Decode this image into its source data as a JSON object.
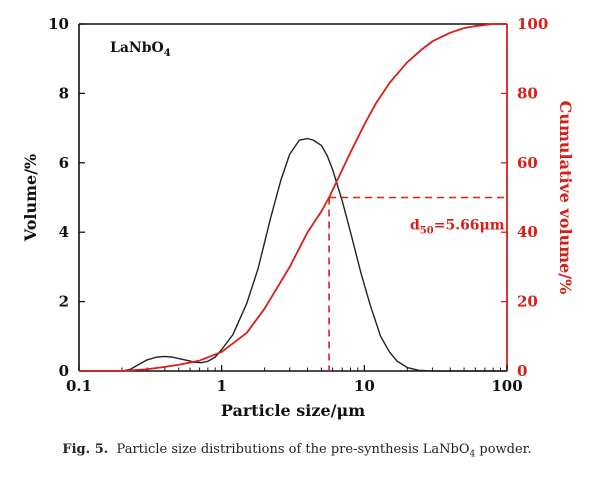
{
  "chart_data": {
    "type": "line",
    "xscale": "log",
    "xlim": [
      0.1,
      100
    ],
    "x_ticks": [
      "0.1",
      "1",
      "10",
      "100"
    ],
    "xlabel": "Particle size/μm",
    "left_axis": {
      "label": "Volume/%",
      "ylim": [
        0,
        10
      ],
      "ticks": [
        "0",
        "2",
        "4",
        "6",
        "8",
        "10"
      ],
      "color": "#111111"
    },
    "right_axis": {
      "label": "Cumulative volume/%",
      "ylim": [
        0,
        100
      ],
      "ticks": [
        "0",
        "20",
        "40",
        "60",
        "80",
        "100"
      ],
      "color": "#d91e18"
    },
    "series": [
      {
        "axis": "left",
        "color": "#222222",
        "x": [
          0.2,
          0.23,
          0.26,
          0.3,
          0.35,
          0.4,
          0.45,
          0.5,
          0.58,
          0.65,
          0.72,
          0.8,
          0.9,
          1.0,
          1.2,
          1.5,
          1.8,
          2.2,
          2.6,
          3.0,
          3.5,
          4.0,
          4.4,
          5.0,
          5.5,
          6.0,
          7.0,
          8.0,
          9.5,
          11.0,
          13.0,
          15.0,
          17.0,
          20.0,
          24.0,
          30.0,
          40.0,
          100.0
        ],
        "y": [
          0.0,
          0.05,
          0.18,
          0.32,
          0.4,
          0.42,
          0.4,
          0.36,
          0.3,
          0.25,
          0.24,
          0.28,
          0.4,
          0.62,
          1.05,
          1.95,
          2.95,
          4.4,
          5.5,
          6.25,
          6.65,
          6.7,
          6.65,
          6.5,
          6.2,
          5.8,
          4.9,
          4.0,
          2.8,
          1.9,
          1.0,
          0.55,
          0.28,
          0.1,
          0.02,
          0.0,
          0.0,
          0.0
        ]
      },
      {
        "axis": "right",
        "color": "#d91e18",
        "x": [
          0.1,
          0.2,
          0.3,
          0.4,
          0.5,
          0.7,
          1.0,
          1.5,
          2.0,
          3.0,
          4.0,
          5.0,
          5.66,
          7.0,
          8.0,
          10.0,
          12.0,
          15.0,
          20.0,
          25.0,
          30.0,
          40.0,
          50.0,
          60.0,
          80.0,
          100.0
        ],
        "y": [
          0.0,
          0.0,
          0.5,
          1.2,
          1.8,
          3.0,
          5.5,
          11.0,
          18.0,
          30.0,
          40.0,
          46.0,
          50.0,
          58.0,
          63.0,
          71.0,
          77.0,
          83.0,
          89.0,
          92.5,
          95.0,
          97.5,
          98.8,
          99.4,
          100.0,
          100.0
        ]
      }
    ],
    "annotations": [
      {
        "type": "marker",
        "text_main": "d",
        "text_sub": "50",
        "text_rest": "=5.66μm",
        "x": 5.66,
        "y": 50,
        "axis": "right"
      }
    ],
    "inset_label": {
      "main": "LaNbO",
      "sub": "4"
    }
  },
  "caption": {
    "label": "Fig. 5.",
    "text_pre": "Particle size distributions of the pre-synthesis LaNbO",
    "text_sub": "4",
    "text_post": " powder."
  }
}
